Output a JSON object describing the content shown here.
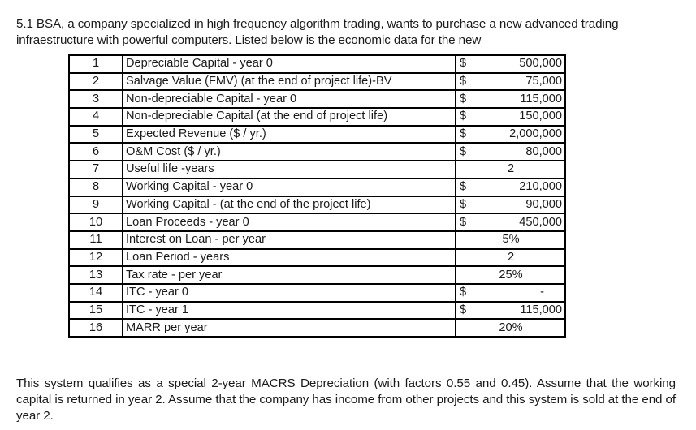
{
  "intro": "5.1 BSA, a company specialized in high frequency algorithm trading, wants to purchase a new advanced trading infraestructure with powerful computers.  Listed below is the economic data for the new",
  "table": {
    "rows": [
      {
        "num": "1",
        "label": "Depreciable Capital - year 0",
        "currency": "$",
        "value": "500,000"
      },
      {
        "num": "2",
        "label": "Salvage Value (FMV) (at the end of project life)-BV",
        "currency": "$",
        "value": "75,000"
      },
      {
        "num": "3",
        "label": "Non-depreciable Capital - year 0",
        "currency": "$",
        "value": "115,000"
      },
      {
        "num": "4",
        "label": "Non-depreciable Capital (at the end of project life)",
        "currency": "$",
        "value": "150,000"
      },
      {
        "num": "5",
        "label": "Expected Revenue ($ / yr.)",
        "currency": "$",
        "value": "2,000,000"
      },
      {
        "num": "6",
        "label": "O&M Cost ($ / yr.)",
        "currency": "$",
        "value": "80,000"
      },
      {
        "num": "7",
        "label": "Useful life -years",
        "currency": "",
        "value": "2"
      },
      {
        "num": "8",
        "label": "Working Capital - year 0",
        "currency": "$",
        "value": "210,000"
      },
      {
        "num": "9",
        "label": "Working Capital - (at the end of the project life)",
        "currency": "$",
        "value": "90,000"
      },
      {
        "num": "10",
        "label": "Loan Proceeds - year 0",
        "currency": "$",
        "value": "450,000"
      },
      {
        "num": "11",
        "label": "Interest on Loan - per year",
        "currency": "",
        "value": "5%"
      },
      {
        "num": "12",
        "label": "Loan Period - years",
        "currency": "",
        "value": "2"
      },
      {
        "num": "13",
        "label": "Tax rate - per year",
        "currency": "",
        "value": "25%"
      },
      {
        "num": "14",
        "label": "ITC - year 0",
        "currency": "$",
        "value": "-"
      },
      {
        "num": "15",
        "label": "ITC - year 1",
        "currency": "$",
        "value": "115,000"
      },
      {
        "num": "16",
        "label": "MARR per year",
        "currency": "",
        "value": "20%"
      }
    ]
  },
  "outro": "This system qualifies as a special 2-year MACRS Depreciation (with factors 0.55 and 0.45). Assume that the working capital is returned in year 2. Assume that the company has income from other projects and this system is sold at the end of year 2."
}
